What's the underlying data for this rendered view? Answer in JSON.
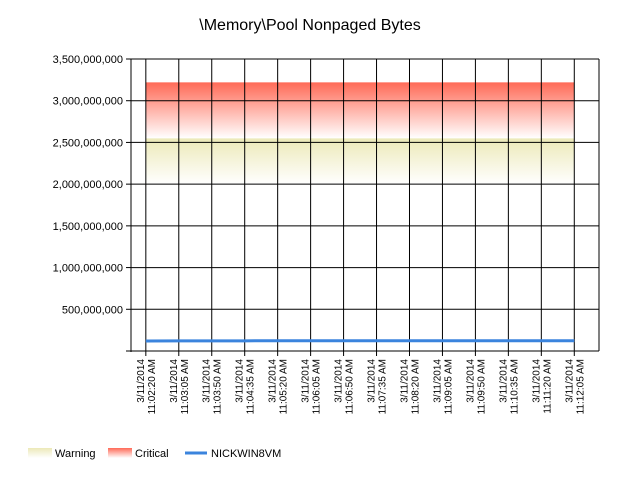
{
  "chart_data": {
    "type": "line",
    "title": "\\Memory\\Pool Nonpaged Bytes",
    "xlabel": "",
    "ylabel": "",
    "ylim": [
      0,
      3500000000
    ],
    "yticks": [
      {
        "value": 500000000,
        "label": "500,000,000"
      },
      {
        "value": 1000000000,
        "label": "1,000,000,000"
      },
      {
        "value": 1500000000,
        "label": "1,500,000,000"
      },
      {
        "value": 2000000000,
        "label": "2,000,000,000"
      },
      {
        "value": 2500000000,
        "label": "2,500,000,000"
      },
      {
        "value": 3000000000,
        "label": "3,000,000,000"
      },
      {
        "value": 3500000000,
        "label": "3,500,000,000"
      }
    ],
    "categories": [
      [
        "3/11/2014",
        "11:02:20 AM"
      ],
      [
        "3/11/2014",
        "11:03:05 AM"
      ],
      [
        "3/11/2014",
        "11:03:50 AM"
      ],
      [
        "3/11/2014",
        "11:04:35 AM"
      ],
      [
        "3/11/2014",
        "11:05:20 AM"
      ],
      [
        "3/11/2014",
        "11:06:05 AM"
      ],
      [
        "3/11/2014",
        "11:06:50 AM"
      ],
      [
        "3/11/2014",
        "11:07:35 AM"
      ],
      [
        "3/11/2014",
        "11:08:20 AM"
      ],
      [
        "3/11/2014",
        "11:09:05 AM"
      ],
      [
        "3/11/2014",
        "11:09:50 AM"
      ],
      [
        "3/11/2014",
        "11:10:35 AM"
      ],
      [
        "3/11/2014",
        "11:11:20 AM"
      ],
      [
        "3/11/2014",
        "11:12:05 AM"
      ]
    ],
    "bands": [
      {
        "name": "Warning",
        "from": 2000000000,
        "to": 2550000000,
        "color_top": "#ece9b8",
        "color_bottom": "#ffffff"
      },
      {
        "name": "Critical",
        "from": 2550000000,
        "to": 3220000000,
        "color_top": "#ff6a57",
        "color_bottom": "#ffffff"
      }
    ],
    "series": [
      {
        "name": "NICKWIN8VM",
        "color": "#3b84dd",
        "values": [
          120000000,
          121000000,
          122000000,
          122000000,
          123000000,
          123000000,
          123000000,
          123000000,
          123000000,
          123000000,
          123000000,
          123000000,
          123000000,
          123000000
        ]
      }
    ],
    "grid": true,
    "legend_position": "bottom-left"
  }
}
